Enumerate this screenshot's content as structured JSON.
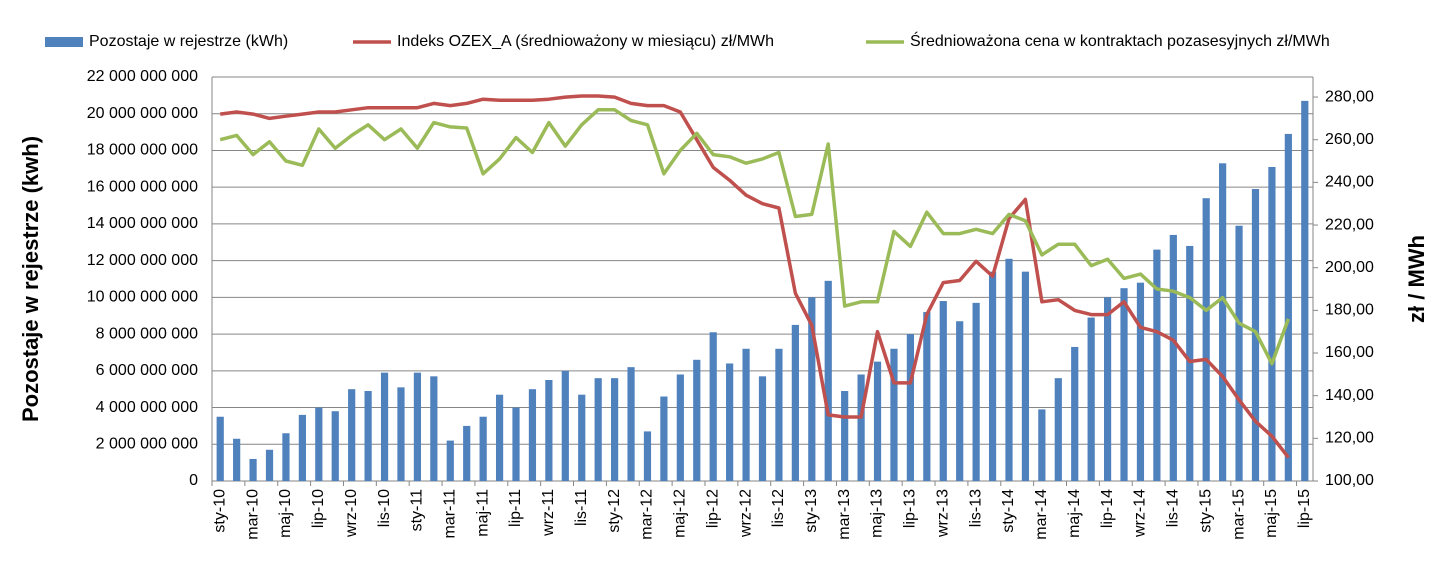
{
  "chart_data": {
    "type": "bar_line",
    "categories": [
      "sty-10",
      null,
      "mar-10",
      null,
      "maj-10",
      null,
      "lip-10",
      null,
      "wrz-10",
      null,
      "lis-10",
      null,
      "sty-11",
      null,
      "mar-11",
      null,
      "maj-11",
      null,
      "lip-11",
      null,
      "wrz-11",
      null,
      "lis-11",
      null,
      "sty-12",
      null,
      "mar-12",
      null,
      "maj-12",
      null,
      "lip-12",
      null,
      "wrz-12",
      null,
      "lis-12",
      null,
      "sty-13",
      null,
      "mar-13",
      null,
      "maj-13",
      null,
      "lip-13",
      null,
      "wrz-13",
      null,
      "lis-13",
      null,
      "sty-14",
      null,
      "mar-14",
      null,
      "maj-14",
      null,
      "lip-14",
      null,
      "wrz-14",
      null,
      "lis-14",
      null,
      "sty-15",
      null,
      "mar-15",
      null,
      "maj-15",
      null,
      "lip-15"
    ],
    "series": [
      {
        "name": "Pozostaje w rejestrze (kWh)",
        "type": "bar",
        "color": "#4f81bd",
        "axis": "y",
        "values": [
          3500000000,
          2300000000,
          1200000000,
          1700000000,
          2600000000,
          3600000000,
          4000000000,
          3800000000,
          5000000000,
          4900000000,
          5900000000,
          5100000000,
          5900000000,
          5700000000,
          2200000000,
          3000000000,
          3500000000,
          4700000000,
          4000000000,
          5000000000,
          5500000000,
          6000000000,
          4700000000,
          5600000000,
          5600000000,
          6200000000,
          2700000000,
          4600000000,
          5800000000,
          6600000000,
          8100000000,
          6400000000,
          7200000000,
          5700000000,
          7200000000,
          8500000000,
          10000000000,
          10900000000,
          4900000000,
          5800000000,
          6500000000,
          7200000000,
          8000000000,
          9200000000,
          9800000000,
          8700000000,
          9700000000,
          11400000000,
          12100000000,
          11400000000,
          3900000000,
          5600000000,
          7300000000,
          8900000000,
          10000000000,
          10500000000,
          10800000000,
          12600000000,
          13400000000,
          12800000000,
          15400000000,
          17300000000,
          13900000000,
          15900000000,
          17100000000,
          18900000000,
          20700000000
        ]
      },
      {
        "name": "Indeks OZEX_A (średnioważony w miesiącu) zł/MWh",
        "type": "line",
        "color": "#c0504d",
        "axis": "y2",
        "values": [
          272,
          273,
          272,
          270,
          271,
          272,
          273,
          273,
          274,
          275,
          275,
          275,
          275,
          277,
          276,
          277,
          279,
          278.5,
          278.5,
          278.5,
          279,
          280,
          280.5,
          280.5,
          280,
          277,
          276,
          276,
          273,
          260,
          247,
          241,
          234,
          230,
          228,
          188,
          173,
          131,
          130,
          130,
          170,
          146,
          146,
          178,
          193,
          194,
          203,
          196,
          223,
          232,
          184,
          185,
          180,
          178,
          178,
          184,
          172,
          170,
          166,
          156,
          157,
          149,
          138,
          128,
          121,
          111,
          null
        ]
      },
      {
        "name": "Średnioważona cena w kontraktach pozasesyjnych zł/MWh",
        "type": "line",
        "color": "#9bbb59",
        "axis": "y2",
        "values": [
          260,
          262,
          253,
          259,
          250,
          248,
          265,
          256,
          262,
          267,
          260,
          265,
          256,
          268,
          266,
          265.5,
          244,
          251,
          261,
          254,
          268,
          257,
          267,
          274,
          274,
          269,
          267,
          244,
          255,
          263,
          253,
          252,
          249,
          251,
          254,
          224,
          225,
          258,
          182,
          184,
          184,
          217,
          210,
          226,
          216,
          216,
          218,
          216,
          225,
          222,
          206,
          211,
          211,
          201,
          204,
          195,
          197,
          190,
          189,
          186,
          180,
          186,
          174,
          170,
          155,
          176,
          null
        ]
      }
    ],
    "y_label": "Pozostaje w rejestrze (kwh)",
    "y2_label": "zł / MWh",
    "ylim": [
      0,
      22000000000
    ],
    "yticks": [
      0,
      {
        "value": 2000000000,
        "label": "2 000 000 000"
      },
      {
        "value": 4000000000,
        "label": "4 000 000 000"
      },
      {
        "value": 6000000000,
        "label": "6 000 000 000"
      },
      {
        "value": 8000000000,
        "label": "8 000 000 000"
      },
      {
        "value": 10000000000,
        "label": "10 000 000 000"
      },
      {
        "value": 12000000000,
        "label": "12 000 000 000"
      },
      {
        "value": 14000000000,
        "label": "14 000 000 000"
      },
      {
        "value": 16000000000,
        "label": "16 000 000 000"
      },
      {
        "value": 18000000000,
        "label": "18 000 000 000"
      },
      {
        "value": 20000000000,
        "label": "20 000 000 000"
      },
      {
        "value": 22000000000,
        "label": "22 000 000 000"
      }
    ],
    "y2lim": [
      100,
      289.4
    ],
    "y2ticks": [
      {
        "value": 100,
        "label": "100,00"
      },
      {
        "value": 120,
        "label": "120,00"
      },
      {
        "value": 140,
        "label": "140,00"
      },
      {
        "value": 160,
        "label": "160,00"
      },
      {
        "value": 180,
        "label": "180,00"
      },
      {
        "value": 200,
        "label": "200,00"
      },
      {
        "value": 220,
        "label": "220,00"
      },
      {
        "value": 240,
        "label": "240,00"
      },
      {
        "value": 260,
        "label": "260,00"
      },
      {
        "value": 280,
        "label": "280,00"
      }
    ],
    "grid": true,
    "legend": "top"
  }
}
